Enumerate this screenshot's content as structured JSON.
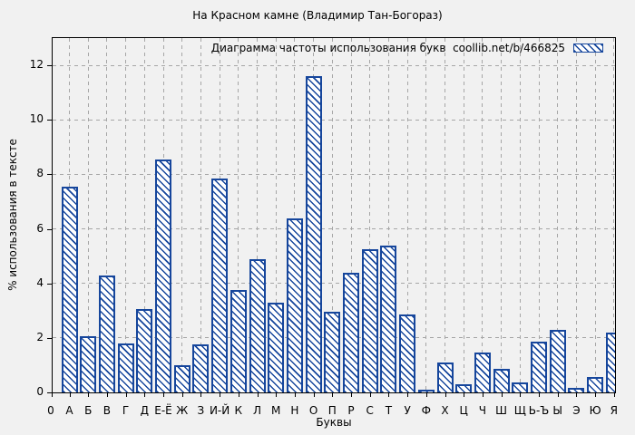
{
  "title": "На Красном камне (Владимир Тан-Богораз)",
  "legend": {
    "label": "Диаграмма частоты использования букв  coollib.net/b/466825",
    "swatch": "blue-diagonal-hatch"
  },
  "axes": {
    "x_title": "Буквы",
    "y_title": "% использования в тексте",
    "origin_label": "0"
  },
  "colors": {
    "background": "#f1f1f1",
    "bar_border": "#16469c",
    "bar_fill": "#ffffff",
    "grid": "#a6a6a6",
    "axis": "#000000",
    "text": "#000000"
  },
  "chart_data": {
    "type": "bar",
    "title": "На Красном камне (Владимир Тан-Богораз)",
    "xlabel": "Буквы",
    "ylabel": "% использования в тексте",
    "legend_label": "Диаграмма частоты использования букв  coollib.net/b/466825",
    "categories": [
      "А",
      "Б",
      "В",
      "Г",
      "Д",
      "Е-Ё",
      "Ж",
      "З",
      "И-Й",
      "К",
      "Л",
      "М",
      "Н",
      "О",
      "П",
      "Р",
      "С",
      "Т",
      "У",
      "Ф",
      "Х",
      "Ц",
      "Ч",
      "Ш",
      "Щ",
      "Ь-Ъ",
      "Ы",
      "Э",
      "Ю",
      "Я"
    ],
    "values": [
      7.55,
      2.05,
      4.3,
      1.8,
      3.05,
      8.55,
      1.0,
      1.75,
      7.85,
      3.75,
      4.9,
      3.3,
      6.4,
      11.6,
      2.95,
      4.4,
      5.25,
      5.4,
      2.85,
      0.1,
      1.1,
      0.3,
      1.45,
      0.85,
      0.35,
      1.85,
      2.3,
      0.15,
      0.55,
      2.2
    ],
    "yticks": [
      0,
      2,
      4,
      6,
      8,
      10,
      12
    ],
    "ylim": [
      0,
      13
    ],
    "grid": true,
    "legend_position": "top-right",
    "bar_style": "diagonal-hatch"
  }
}
